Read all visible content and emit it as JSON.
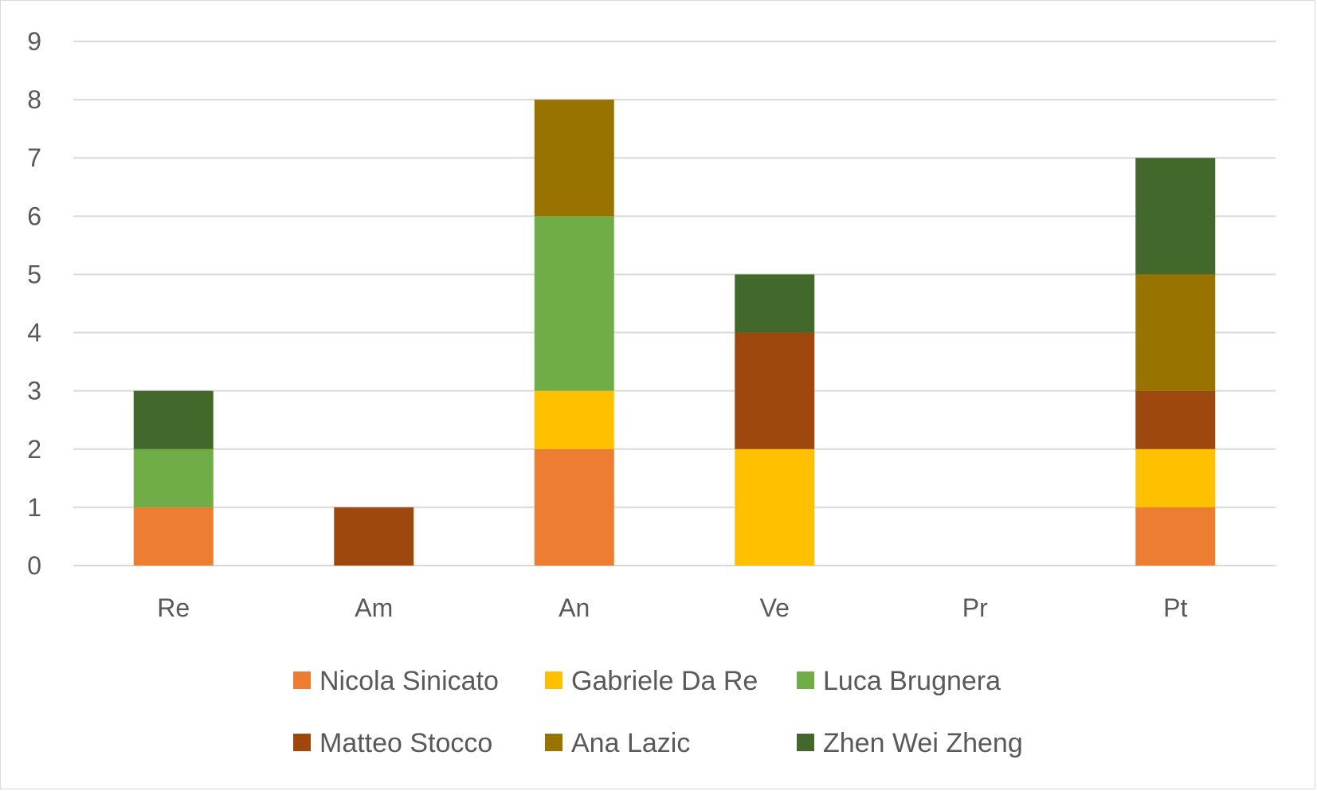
{
  "chart_data": {
    "type": "bar",
    "stacked": true,
    "categories": [
      "Re",
      "Am",
      "An",
      "Ve",
      "Pr",
      "Pt"
    ],
    "series": [
      {
        "name": "Nicola Sinicato",
        "color": "#ED7D31",
        "values": [
          1,
          0,
          2,
          0,
          0,
          1
        ]
      },
      {
        "name": "Gabriele Da Re",
        "color": "#FFC000",
        "values": [
          0,
          0,
          1,
          2,
          0,
          1
        ]
      },
      {
        "name": "Luca Brugnera",
        "color": "#70AD47",
        "values": [
          1,
          0,
          3,
          0,
          0,
          0
        ]
      },
      {
        "name": "Matteo Stocco",
        "color": "#9E480E",
        "values": [
          0,
          1,
          0,
          2,
          0,
          1
        ]
      },
      {
        "name": "Ana Lazic",
        "color": "#997300",
        "values": [
          0,
          0,
          2,
          0,
          0,
          2
        ]
      },
      {
        "name": "Zhen Wei Zheng",
        "color": "#43682B",
        "values": [
          1,
          0,
          0,
          1,
          0,
          2
        ]
      }
    ],
    "yticks": [
      "0",
      "1",
      "2",
      "3",
      "4",
      "5",
      "6",
      "7",
      "8",
      "9"
    ],
    "ylim": [
      0,
      9
    ],
    "title": "",
    "xlabel": "",
    "ylabel": "",
    "grid": true,
    "legend_position": "bottom"
  }
}
